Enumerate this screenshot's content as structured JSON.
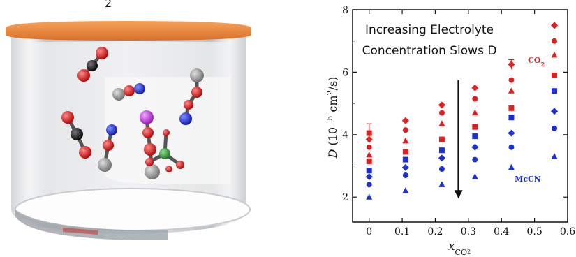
{
  "colors": {
    "co2": "#e02020",
    "mecn": "#1a2fd8",
    "lid": "#f0883a",
    "oxygen": "#d81818",
    "carbon": "#151515",
    "nitrogen": "#1c2fe0",
    "methyl": "#8a8a8a",
    "cation": "#c030e0",
    "anion": "#2f9a3a"
  },
  "illustration": {
    "caption_fragment": "2"
  },
  "chart_data": {
    "type": "scatter",
    "xlabel_main": "x",
    "xlabel_sub": "CO",
    "xlabel_sub2": "2",
    "ylabel_main": "D",
    "ylabel_units": "(10",
    "ylabel_exp": "−5",
    "ylabel_units2": " cm",
    "ylabel_exp2": "2",
    "ylabel_units3": "/s)",
    "xlim": [
      -0.05,
      0.6
    ],
    "ylim": [
      1.2,
      8
    ],
    "xticks": [
      0,
      0.1,
      0.2,
      0.3,
      0.4,
      0.5,
      0.6
    ],
    "xtick_labels": [
      "0",
      "0.1",
      "0.2",
      "0.3",
      "0.4",
      "0.5",
      "0.6"
    ],
    "yticks": [
      2,
      4,
      6,
      8
    ],
    "ytick_labels": [
      "2",
      "4",
      "6",
      "8"
    ],
    "annotation_line1": "Increasing Electrolyte",
    "annotation_line2": "Concentration Slows D",
    "arrow": {
      "x": 0.27,
      "y_start": 5.75,
      "y_end": 2.0
    },
    "series": [
      {
        "name": "CO",
        "name_sub": "2",
        "color_key": "co2",
        "points": [
          {
            "x": 0,
            "y": 4.05,
            "err": 0.3
          },
          {
            "x": 0,
            "y": 3.85
          },
          {
            "x": 0,
            "y": 3.6
          },
          {
            "x": 0,
            "y": 3.35
          },
          {
            "x": 0,
            "y": 3.15
          },
          {
            "x": 0.11,
            "y": 4.45
          },
          {
            "x": 0.11,
            "y": 4.15
          },
          {
            "x": 0.11,
            "y": 3.8
          },
          {
            "x": 0.11,
            "y": 3.45
          },
          {
            "x": 0.22,
            "y": 4.95
          },
          {
            "x": 0.22,
            "y": 4.7
          },
          {
            "x": 0.22,
            "y": 4.35
          },
          {
            "x": 0.22,
            "y": 3.85
          },
          {
            "x": 0.32,
            "y": 5.5
          },
          {
            "x": 0.32,
            "y": 5.15
          },
          {
            "x": 0.32,
            "y": 4.7
          },
          {
            "x": 0.32,
            "y": 4.25
          },
          {
            "x": 0.43,
            "y": 6.25,
            "err": 0.15
          },
          {
            "x": 0.43,
            "y": 5.75
          },
          {
            "x": 0.43,
            "y": 5.4
          },
          {
            "x": 0.43,
            "y": 4.85
          },
          {
            "x": 0.56,
            "y": 7.5
          },
          {
            "x": 0.56,
            "y": 7.0
          },
          {
            "x": 0.56,
            "y": 6.55
          },
          {
            "x": 0.56,
            "y": 5.9
          }
        ]
      },
      {
        "name": "McCN",
        "color_key": "mecn",
        "points": [
          {
            "x": 0,
            "y": 2.85
          },
          {
            "x": 0,
            "y": 2.65
          },
          {
            "x": 0,
            "y": 2.4
          },
          {
            "x": 0,
            "y": 2.0
          },
          {
            "x": 0.11,
            "y": 3.2
          },
          {
            "x": 0.11,
            "y": 2.95
          },
          {
            "x": 0.11,
            "y": 2.7
          },
          {
            "x": 0.11,
            "y": 2.2
          },
          {
            "x": 0.22,
            "y": 3.5
          },
          {
            "x": 0.22,
            "y": 3.25
          },
          {
            "x": 0.22,
            "y": 2.9
          },
          {
            "x": 0.22,
            "y": 2.4
          },
          {
            "x": 0.32,
            "y": 3.95
          },
          {
            "x": 0.32,
            "y": 3.6
          },
          {
            "x": 0.32,
            "y": 3.2
          },
          {
            "x": 0.32,
            "y": 2.65
          },
          {
            "x": 0.43,
            "y": 4.55
          },
          {
            "x": 0.43,
            "y": 4.05
          },
          {
            "x": 0.43,
            "y": 3.6
          },
          {
            "x": 0.43,
            "y": 2.95
          },
          {
            "x": 0.56,
            "y": 5.4
          },
          {
            "x": 0.56,
            "y": 4.75
          },
          {
            "x": 0.56,
            "y": 4.2
          },
          {
            "x": 0.56,
            "y": 3.3
          }
        ]
      }
    ]
  }
}
